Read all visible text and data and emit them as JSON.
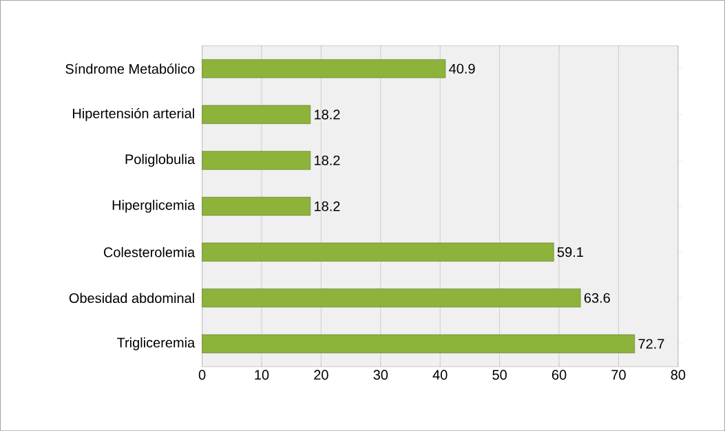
{
  "chart_data": {
    "type": "bar",
    "orientation": "horizontal",
    "categories": [
      "Síndrome Metabólico",
      "Hipertensión arterial",
      "Poliglobulia",
      "Hiperglicemia",
      "Colesterolemia",
      "Obesidad abdominal",
      "Trigliceremia"
    ],
    "values": [
      40.9,
      18.2,
      18.2,
      18.2,
      59.1,
      63.6,
      72.7
    ],
    "color": "#8db33a",
    "xlim": [
      0,
      80
    ],
    "xticks": [
      0,
      10,
      20,
      30,
      40,
      50,
      60,
      70,
      80
    ],
    "grid": "x",
    "data_labels": true
  }
}
